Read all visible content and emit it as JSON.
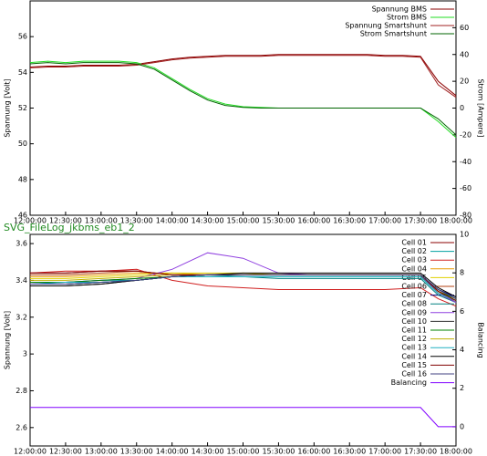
{
  "chart_data": [
    {
      "type": "line",
      "y_label": "Spannung [Volt]",
      "y2_label": "Strom [Ampere]",
      "x": [
        "12:00:00",
        "12:15:00",
        "12:30:00",
        "12:45:00",
        "13:00:00",
        "13:15:00",
        "13:30:00",
        "13:45:00",
        "14:00:00",
        "14:15:00",
        "14:30:00",
        "14:45:00",
        "15:00:00",
        "15:15:00",
        "15:30:00",
        "15:45:00",
        "16:00:00",
        "16:15:00",
        "16:30:00",
        "16:45:00",
        "17:00:00",
        "17:15:00",
        "17:30:00",
        "17:45:00",
        "18:00:00"
      ],
      "xlim": [
        "12:00:00",
        "18:00:00"
      ],
      "xticks": [
        "12:00:00",
        "12:30:00",
        "13:00:00",
        "13:30:00",
        "14:00:00",
        "14:30:00",
        "15:00:00",
        "15:30:00",
        "16:00:00",
        "16:30:00",
        "17:00:00",
        "17:30:00",
        "18:00:00"
      ],
      "ylim": [
        46,
        58
      ],
      "yticks": [
        46,
        48,
        50,
        52,
        54,
        56
      ],
      "y2lim": [
        -80,
        80
      ],
      "y2ticks": [
        -80,
        -60,
        -40,
        -20,
        0,
        20,
        40,
        60
      ],
      "series": [
        {
          "name": "Spannung BMS",
          "color": "#8b0000",
          "values": [
            54.3,
            54.35,
            54.35,
            54.4,
            54.4,
            54.4,
            54.45,
            54.6,
            54.75,
            54.85,
            54.9,
            54.95,
            54.95,
            54.95,
            55,
            55,
            55,
            55,
            55,
            55,
            54.95,
            54.95,
            54.9,
            53.5,
            52.7
          ]
        },
        {
          "name": "Strom BMS",
          "color": "#22dd22",
          "axis": "y2",
          "values": [
            34,
            35,
            34,
            35,
            35,
            35,
            34,
            30,
            22,
            14,
            7,
            3,
            1,
            0.5,
            0,
            0,
            0,
            0,
            0,
            0,
            0,
            0,
            0,
            -10,
            -22
          ]
        },
        {
          "name": "Spannung Smartshunt",
          "color": "#a02020",
          "values": [
            54.25,
            54.3,
            54.3,
            54.35,
            54.35,
            54.35,
            54.4,
            54.55,
            54.7,
            54.8,
            54.85,
            54.9,
            54.9,
            54.9,
            54.95,
            54.95,
            54.95,
            54.95,
            54.95,
            54.95,
            54.9,
            54.9,
            54.85,
            53.3,
            52.6
          ]
        },
        {
          "name": "Strom Smartshunt",
          "color": "#006400",
          "axis": "y2",
          "values": [
            33,
            34,
            33,
            34,
            34,
            34,
            33,
            29,
            21,
            13,
            6,
            2,
            0.5,
            0,
            0,
            0,
            0,
            0,
            0,
            0,
            0,
            0,
            0,
            -8,
            -20
          ]
        }
      ]
    },
    {
      "type": "line",
      "title": "SVG_FileLog_jkbms_eb1_2",
      "y_label": "Spannung [Volt]",
      "y2_label": "Balancing",
      "x": [
        "12:00:00",
        "12:30:00",
        "13:00:00",
        "13:30:00",
        "14:00:00",
        "14:30:00",
        "15:00:00",
        "15:30:00",
        "16:00:00",
        "16:30:00",
        "17:00:00",
        "17:30:00",
        "17:45:00",
        "18:00:00"
      ],
      "xlim": [
        "12:00:00",
        "18:00:00"
      ],
      "xticks": [
        "12:00:00",
        "12:30:00",
        "13:00:00",
        "13:30:00",
        "14:00:00",
        "14:30:00",
        "15:00:00",
        "15:30:00",
        "16:00:00",
        "16:30:00",
        "17:00:00",
        "17:30:00",
        "18:00:00"
      ],
      "ylim": [
        2.5,
        3.65
      ],
      "yticks": [
        2.6,
        2.8,
        3,
        3.2,
        3.4,
        3.6
      ],
      "y2lim": [
        -1,
        10
      ],
      "y2ticks": [
        0,
        2,
        4,
        6,
        8,
        10
      ],
      "series": [
        {
          "name": "Cell 01",
          "color": "#8b0000",
          "values": [
            3.44,
            3.44,
            3.45,
            3.45,
            3.43,
            3.43,
            3.43,
            3.43,
            3.43,
            3.43,
            3.43,
            3.43,
            3.34,
            3.28
          ]
        },
        {
          "name": "Cell 02",
          "color": "#00a0a0",
          "values": [
            3.39,
            3.39,
            3.4,
            3.4,
            3.42,
            3.42,
            3.42,
            3.42,
            3.42,
            3.42,
            3.42,
            3.42,
            3.33,
            3.29
          ]
        },
        {
          "name": "Cell 03",
          "color": "#d02020",
          "values": [
            3.44,
            3.45,
            3.45,
            3.46,
            3.4,
            3.37,
            3.36,
            3.35,
            3.35,
            3.35,
            3.35,
            3.36,
            3.3,
            3.26
          ]
        },
        {
          "name": "Cell 04",
          "color": "#e89a00",
          "values": [
            3.42,
            3.42,
            3.43,
            3.44,
            3.44,
            3.43,
            3.43,
            3.43,
            3.43,
            3.43,
            3.43,
            3.43,
            3.34,
            3.29
          ]
        },
        {
          "name": "Cell 05",
          "color": "#e0d000",
          "values": [
            3.41,
            3.41,
            3.42,
            3.43,
            3.44,
            3.44,
            3.44,
            3.43,
            3.43,
            3.43,
            3.43,
            3.43,
            3.34,
            3.3
          ]
        },
        {
          "name": "Cell 06",
          "color": "#b04010",
          "values": [
            3.43,
            3.43,
            3.44,
            3.45,
            3.43,
            3.43,
            3.43,
            3.43,
            3.43,
            3.43,
            3.43,
            3.43,
            3.33,
            3.28
          ]
        },
        {
          "name": "Cell 07",
          "color": "#000080",
          "values": [
            3.38,
            3.38,
            3.39,
            3.4,
            3.42,
            3.43,
            3.43,
            3.43,
            3.43,
            3.43,
            3.43,
            3.43,
            3.35,
            3.31
          ]
        },
        {
          "name": "Cell 08",
          "color": "#008080",
          "values": [
            3.38,
            3.38,
            3.39,
            3.4,
            3.42,
            3.43,
            3.42,
            3.41,
            3.41,
            3.41,
            3.41,
            3.41,
            3.32,
            3.28
          ]
        },
        {
          "name": "Cell 09",
          "color": "#9040e0",
          "values": [
            3.38,
            3.39,
            3.4,
            3.41,
            3.46,
            3.55,
            3.52,
            3.44,
            3.43,
            3.43,
            3.43,
            3.43,
            3.33,
            3.28
          ]
        },
        {
          "name": "Cell 10",
          "color": "#303030",
          "values": [
            3.37,
            3.37,
            3.38,
            3.4,
            3.42,
            3.43,
            3.43,
            3.43,
            3.43,
            3.43,
            3.43,
            3.43,
            3.35,
            3.3
          ]
        },
        {
          "name": "Cell 11",
          "color": "#008000",
          "values": [
            3.39,
            3.39,
            3.4,
            3.41,
            3.42,
            3.43,
            3.43,
            3.43,
            3.43,
            3.43,
            3.43,
            3.43,
            3.34,
            3.3
          ]
        },
        {
          "name": "Cell 12",
          "color": "#c0b000",
          "values": [
            3.4,
            3.4,
            3.41,
            3.42,
            3.43,
            3.43,
            3.43,
            3.43,
            3.43,
            3.43,
            3.43,
            3.43,
            3.34,
            3.29
          ]
        },
        {
          "name": "Cell 13",
          "color": "#20b0c0",
          "values": [
            3.38,
            3.39,
            3.39,
            3.4,
            3.42,
            3.42,
            3.42,
            3.42,
            3.42,
            3.42,
            3.42,
            3.42,
            3.33,
            3.29
          ]
        },
        {
          "name": "Cell 14",
          "color": "#000000",
          "values": [
            3.37,
            3.37,
            3.38,
            3.4,
            3.42,
            3.43,
            3.44,
            3.44,
            3.44,
            3.44,
            3.44,
            3.44,
            3.36,
            3.31
          ]
        },
        {
          "name": "Cell 15",
          "color": "#800000",
          "values": [
            3.44,
            3.44,
            3.45,
            3.45,
            3.43,
            3.43,
            3.43,
            3.43,
            3.43,
            3.43,
            3.43,
            3.43,
            3.34,
            3.29
          ]
        },
        {
          "name": "Cell 16",
          "color": "#404080",
          "values": [
            3.38,
            3.38,
            3.39,
            3.4,
            3.42,
            3.43,
            3.43,
            3.43,
            3.43,
            3.43,
            3.43,
            3.43,
            3.35,
            3.3
          ]
        },
        {
          "name": "Balancing",
          "color": "#8000ff",
          "axis": "y2",
          "values": [
            1,
            1,
            1,
            1,
            1,
            1,
            1,
            1,
            1,
            1,
            1,
            1,
            0,
            0
          ]
        }
      ]
    }
  ]
}
